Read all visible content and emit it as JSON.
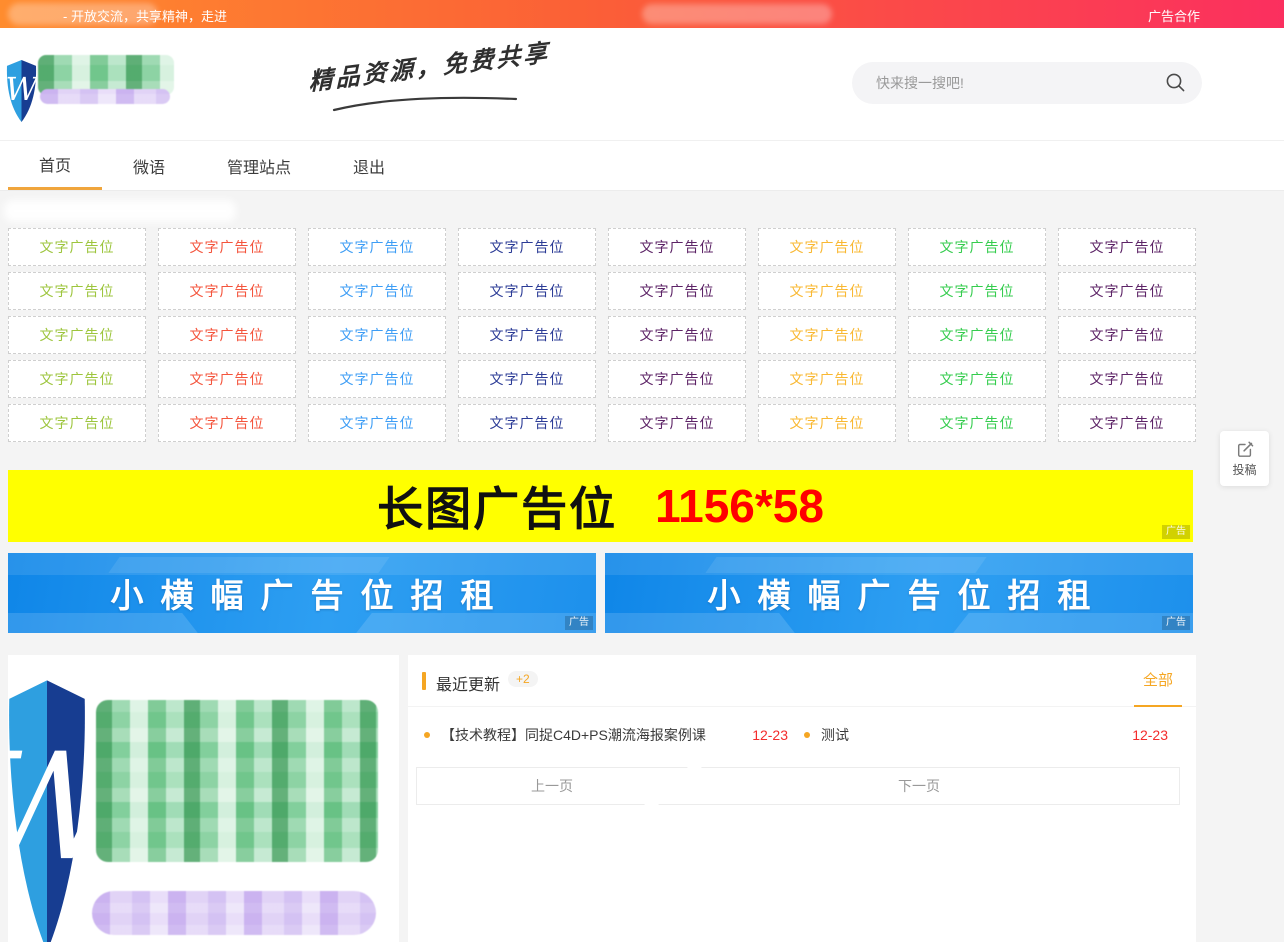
{
  "topbar": {
    "slogan": "- 开放交流，共享精神，走进",
    "ad_link": "广告合作"
  },
  "header": {
    "tagline": "精品资源，免费共享",
    "search_placeholder": "快来搜一搜吧!"
  },
  "nav": {
    "items": [
      {
        "label": "首页",
        "active": true
      },
      {
        "label": "微语",
        "active": false
      },
      {
        "label": "管理站点",
        "active": false
      },
      {
        "label": "退出",
        "active": false
      }
    ]
  },
  "ad_grid": {
    "label": "文字广告位",
    "rows": 5,
    "column_colors": [
      "#9dc53d",
      "#f4543c",
      "#3d9df5",
      "#2b3b96",
      "#5c2366",
      "#f9b832",
      "#35cc4e",
      "#5c2366"
    ]
  },
  "banners": {
    "long": {
      "title": "长图广告位",
      "size": "1156*58",
      "ad_tag": "广告"
    },
    "small": {
      "title": "小横幅广告位招租",
      "ad_tag": "广告"
    }
  },
  "recent": {
    "title": "最近更新",
    "badge": "+2",
    "all_link": "全部",
    "items": [
      {
        "title": "【技术教程】同捉C4D+PS潮流海报案例课",
        "date": "12-23"
      },
      {
        "title": "测试",
        "date": "12-23"
      }
    ]
  },
  "pagination": {
    "prev": "上一页",
    "next": "下一页"
  },
  "floating": {
    "submit_label": "投稿"
  },
  "colors": {
    "accent_orange": "#f5a623",
    "date_red": "#f32c2c",
    "topbar_gradient_start": "#ff8c2e",
    "topbar_gradient_end": "#fb2f5f",
    "banner_yellow": "#ffff00",
    "banner_blue": "#1e96ee"
  }
}
